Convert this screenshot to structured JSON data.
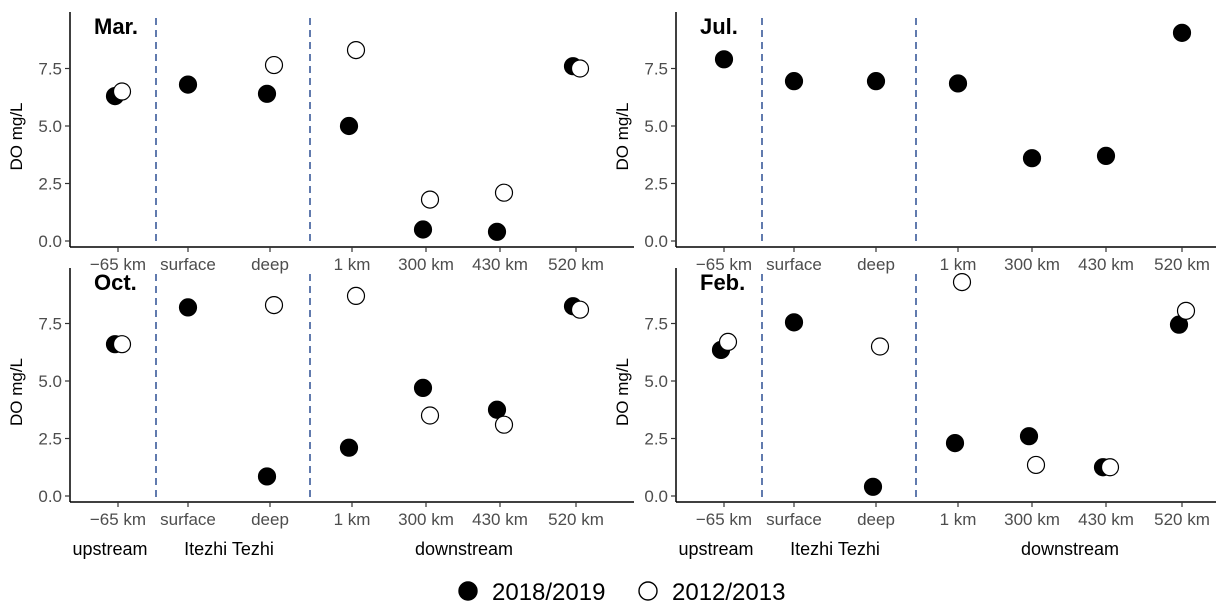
{
  "chart_data": {
    "type": "scatter",
    "legend": {
      "position": "bottom",
      "entries": [
        {
          "label": "2018/2019",
          "marker": "filled-circle"
        },
        {
          "label": "2012/2013",
          "marker": "open-circle"
        }
      ]
    },
    "ylabel": "DO mg/L",
    "ylim": [
      0,
      9.5
    ],
    "yticks": [
      "0.0",
      "2.5",
      "5.0",
      "7.5"
    ],
    "categories": [
      "−65 km",
      "surface",
      "deep",
      "1 km",
      "300 km",
      "430 km",
      "520 km"
    ],
    "groups": [
      "upstream",
      "Itezhi Tezhi",
      "downstream"
    ],
    "panels": [
      {
        "title": "Mar.",
        "series": [
          {
            "name": "2018/2019",
            "values": [
              6.3,
              6.8,
              6.4,
              5.0,
              0.5,
              0.4,
              7.6
            ]
          },
          {
            "name": "2012/2013",
            "values": [
              6.5,
              null,
              7.65,
              8.3,
              1.8,
              2.1,
              7.5
            ]
          }
        ]
      },
      {
        "title": "Jul.",
        "series": [
          {
            "name": "2018/2019",
            "values": [
              7.9,
              6.95,
              6.95,
              6.85,
              3.6,
              3.7,
              9.05
            ]
          },
          {
            "name": "2012/2013",
            "values": [
              null,
              null,
              null,
              null,
              null,
              null,
              null
            ]
          }
        ]
      },
      {
        "title": "Oct.",
        "series": [
          {
            "name": "2018/2019",
            "values": [
              6.6,
              8.2,
              0.85,
              2.1,
              4.7,
              3.75,
              8.25
            ]
          },
          {
            "name": "2012/2013",
            "values": [
              6.6,
              null,
              8.3,
              8.7,
              3.5,
              3.1,
              8.1
            ]
          }
        ]
      },
      {
        "title": "Feb.",
        "series": [
          {
            "name": "2018/2019",
            "values": [
              6.35,
              7.55,
              0.4,
              2.3,
              2.6,
              1.25,
              7.45
            ]
          },
          {
            "name": "2012/2013",
            "values": [
              6.7,
              null,
              6.5,
              9.3,
              1.35,
              1.25,
              8.05
            ]
          }
        ]
      }
    ],
    "separators": "dashed vertical lines between upstream, Itezhi Tezhi and downstream",
    "colors": {
      "filled": "#000000",
      "open": "#ffffff",
      "separator": "#3a5a9a",
      "axis": "#000000"
    }
  }
}
